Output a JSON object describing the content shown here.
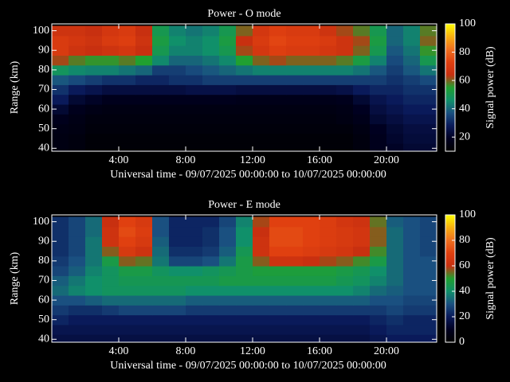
{
  "chart_data": [
    {
      "type": "heatmap",
      "title": "Power - O mode",
      "x_label": "Universal time - 09/07/2025 00:00:00 to 10/07/2025 00:00:00",
      "y_label": "Range (km)",
      "colorbar_label": "Signal power (dB)",
      "x": [
        0.5,
        1.5,
        2.5,
        3.5,
        4.5,
        5.5,
        6.5,
        7.5,
        8.5,
        9.5,
        10.5,
        11.5,
        12.5,
        13.5,
        14.5,
        15.5,
        16.5,
        17.5,
        18.5,
        19.5,
        20.5,
        21.5,
        22.5
      ],
      "y": [
        40,
        45,
        50,
        55,
        60,
        65,
        70,
        75,
        80,
        85,
        90,
        95,
        100
      ],
      "values": [
        [
          15,
          14,
          12,
          12,
          12,
          12,
          12,
          12,
          12,
          12,
          12,
          12,
          12,
          12,
          12,
          12,
          12,
          12,
          14,
          18,
          20,
          22,
          22
        ],
        [
          15,
          14,
          12,
          12,
          12,
          12,
          12,
          12,
          12,
          12,
          12,
          12,
          12,
          12,
          12,
          12,
          12,
          12,
          14,
          18,
          21,
          23,
          23
        ],
        [
          16,
          15,
          13,
          13,
          13,
          13,
          13,
          13,
          13,
          13,
          13,
          13,
          13,
          13,
          13,
          13,
          13,
          13,
          15,
          19,
          22,
          24,
          24
        ],
        [
          18,
          16,
          14,
          14,
          14,
          14,
          14,
          14,
          14,
          14,
          14,
          14,
          14,
          14,
          14,
          14,
          14,
          15,
          17,
          22,
          24,
          26,
          26
        ],
        [
          22,
          18,
          16,
          15,
          15,
          15,
          15,
          15,
          15,
          15,
          15,
          15,
          15,
          15,
          15,
          15,
          15,
          16,
          19,
          24,
          26,
          28,
          28
        ],
        [
          28,
          22,
          20,
          18,
          18,
          18,
          18,
          18,
          18,
          18,
          18,
          17,
          17,
          17,
          17,
          17,
          17,
          18,
          22,
          26,
          28,
          30,
          30
        ],
        [
          32,
          28,
          26,
          24,
          24,
          24,
          24,
          24,
          25,
          25,
          25,
          24,
          24,
          24,
          24,
          24,
          24,
          25,
          28,
          30,
          30,
          32,
          32
        ],
        [
          38,
          36,
          34,
          32,
          32,
          30,
          30,
          32,
          32,
          34,
          34,
          34,
          34,
          34,
          34,
          34,
          34,
          34,
          34,
          34,
          32,
          34,
          36
        ],
        [
          48,
          45,
          44,
          44,
          42,
          40,
          34,
          34,
          36,
          38,
          40,
          42,
          44,
          44,
          44,
          44,
          44,
          44,
          42,
          38,
          34,
          38,
          42
        ],
        [
          62,
          58,
          56,
          56,
          58,
          55,
          45,
          40,
          40,
          42,
          45,
          55,
          60,
          62,
          60,
          60,
          60,
          58,
          52,
          44,
          36,
          40,
          50
        ],
        [
          70,
          66,
          64,
          66,
          68,
          64,
          50,
          44,
          44,
          46,
          50,
          62,
          68,
          72,
          70,
          70,
          68,
          66,
          60,
          50,
          38,
          42,
          56
        ],
        [
          70,
          68,
          66,
          70,
          72,
          66,
          52,
          46,
          44,
          46,
          52,
          64,
          70,
          74,
          72,
          72,
          70,
          66,
          62,
          52,
          40,
          44,
          60
        ],
        [
          66,
          66,
          64,
          68,
          70,
          64,
          50,
          44,
          42,
          44,
          50,
          60,
          68,
          72,
          70,
          70,
          66,
          62,
          58,
          50,
          40,
          44,
          58
        ]
      ],
      "xlim": [
        0,
        23
      ],
      "ylim": [
        38.5,
        103.5
      ],
      "xticks": [
        {
          "value": 4,
          "label": "4:00"
        },
        {
          "value": 8,
          "label": "8:00"
        },
        {
          "value": 12,
          "label": "12:00"
        },
        {
          "value": 16,
          "label": "16:00"
        },
        {
          "value": 20,
          "label": "20:00"
        }
      ],
      "yticks": [
        40,
        50,
        60,
        70,
        80,
        90,
        100
      ],
      "zlim": [
        10,
        100
      ],
      "zticks": [
        20,
        40,
        60,
        80,
        100
      ],
      "colormap": [
        "#000000",
        "#000020",
        "#0a1a5a",
        "#1a5080",
        "#10906a",
        "#20a030",
        "#c83010",
        "#e04010",
        "#f07020",
        "#f8b010",
        "#ffff00"
      ]
    },
    {
      "type": "heatmap",
      "title": "Power - E mode",
      "x_label": "Universal time - 09/07/2025 00:00:00 to 10/07/2025 00:00:00",
      "y_label": "Range (km)",
      "colorbar_label": "Signal power (dB)",
      "x": [
        0.5,
        1.5,
        2.5,
        3.5,
        4.5,
        5.5,
        6.5,
        7.5,
        8.5,
        9.5,
        10.5,
        11.5,
        12.5,
        13.5,
        14.5,
        15.5,
        16.5,
        17.5,
        18.5,
        19.5,
        20.5,
        21.5,
        22.5
      ],
      "y": [
        40,
        45,
        50,
        55,
        60,
        65,
        70,
        75,
        80,
        85,
        90,
        95,
        100
      ],
      "values": [
        [
          16,
          16,
          16,
          16,
          16,
          16,
          16,
          16,
          16,
          16,
          16,
          16,
          16,
          16,
          16,
          16,
          16,
          16,
          16,
          18,
          20,
          20,
          20
        ],
        [
          18,
          18,
          18,
          18,
          18,
          18,
          18,
          18,
          18,
          18,
          18,
          18,
          18,
          18,
          18,
          18,
          18,
          18,
          18,
          20,
          22,
          22,
          22
        ],
        [
          22,
          20,
          20,
          20,
          20,
          20,
          20,
          20,
          20,
          20,
          20,
          20,
          20,
          20,
          20,
          20,
          20,
          20,
          20,
          22,
          24,
          22,
          22
        ],
        [
          26,
          24,
          24,
          26,
          28,
          28,
          28,
          28,
          26,
          26,
          26,
          26,
          26,
          26,
          26,
          26,
          26,
          26,
          26,
          26,
          28,
          26,
          26
        ],
        [
          30,
          30,
          32,
          34,
          34,
          34,
          34,
          34,
          32,
          32,
          32,
          32,
          32,
          32,
          32,
          32,
          32,
          32,
          32,
          30,
          30,
          28,
          28
        ],
        [
          34,
          38,
          40,
          42,
          42,
          42,
          42,
          42,
          40,
          40,
          40,
          40,
          40,
          40,
          40,
          40,
          40,
          40,
          38,
          34,
          32,
          30,
          30
        ],
        [
          32,
          36,
          40,
          42,
          44,
          44,
          44,
          44,
          44,
          44,
          46,
          46,
          46,
          46,
          46,
          46,
          46,
          44,
          42,
          38,
          34,
          30,
          30
        ],
        [
          28,
          32,
          38,
          42,
          46,
          46,
          42,
          40,
          40,
          42,
          44,
          46,
          48,
          48,
          48,
          48,
          48,
          46,
          44,
          40,
          34,
          30,
          30
        ],
        [
          26,
          30,
          36,
          46,
          56,
          54,
          36,
          28,
          28,
          30,
          36,
          46,
          56,
          62,
          62,
          60,
          58,
          56,
          52,
          46,
          34,
          30,
          30
        ],
        [
          24,
          28,
          36,
          56,
          66,
          62,
          34,
          24,
          24,
          26,
          32,
          44,
          62,
          70,
          70,
          68,
          66,
          64,
          60,
          52,
          34,
          30,
          28
        ],
        [
          24,
          28,
          36,
          62,
          70,
          66,
          32,
          22,
          22,
          24,
          30,
          40,
          62,
          72,
          72,
          70,
          68,
          66,
          64,
          56,
          34,
          30,
          28
        ],
        [
          24,
          28,
          34,
          62,
          72,
          68,
          30,
          22,
          22,
          24,
          30,
          40,
          60,
          72,
          72,
          70,
          68,
          66,
          64,
          56,
          34,
          30,
          28
        ],
        [
          24,
          28,
          34,
          60,
          70,
          66,
          30,
          22,
          22,
          22,
          28,
          38,
          58,
          70,
          70,
          70,
          68,
          64,
          62,
          54,
          32,
          30,
          28
        ]
      ],
      "xlim": [
        0,
        23
      ],
      "ylim": [
        38.5,
        103.5
      ],
      "xticks": [
        {
          "value": 4,
          "label": "4:00"
        },
        {
          "value": 8,
          "label": "8:00"
        },
        {
          "value": 12,
          "label": "12:00"
        },
        {
          "value": 16,
          "label": "16:00"
        },
        {
          "value": 20,
          "label": "20:00"
        }
      ],
      "yticks": [
        40,
        50,
        60,
        70,
        80,
        90,
        100
      ],
      "zlim": [
        0,
        100
      ],
      "zticks": [
        0,
        20,
        40,
        60,
        80,
        100
      ],
      "colormap": [
        "#000000",
        "#000020",
        "#0a1a5a",
        "#1a5080",
        "#10906a",
        "#20a030",
        "#c83010",
        "#e04010",
        "#f07020",
        "#f8b010",
        "#ffff00"
      ]
    }
  ]
}
